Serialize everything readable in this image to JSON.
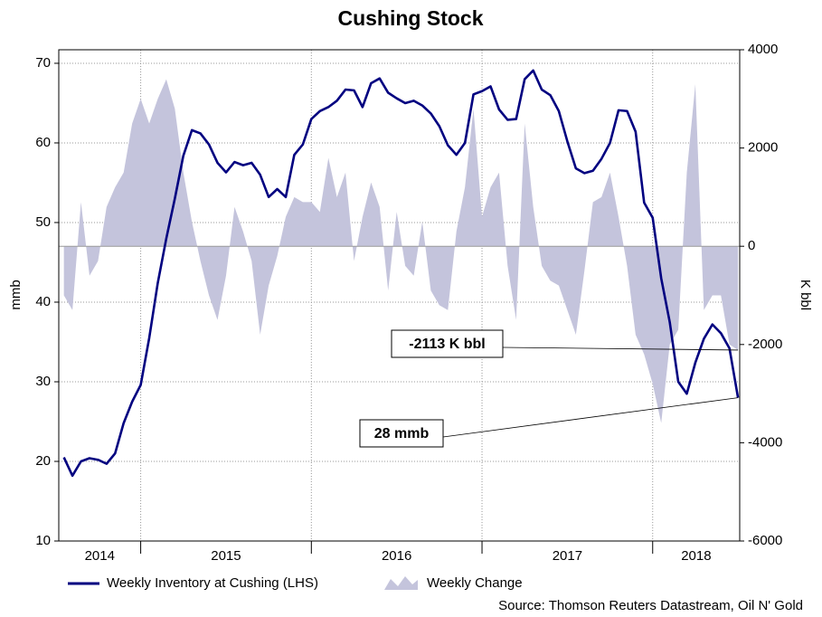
{
  "chart_data": {
    "type": "line",
    "title": "Cushing Stock",
    "y_label": "mmb",
    "y2_label": "K bbl",
    "source": "Source: Thomson Reuters Datastream, Oil N' Gold",
    "x": [
      2014.55,
      2014.6,
      2014.65,
      2014.7,
      2014.75,
      2014.8,
      2014.85,
      2014.9,
      2014.95,
      2015.0,
      2015.05,
      2015.1,
      2015.15,
      2015.2,
      2015.25,
      2015.3,
      2015.35,
      2015.4,
      2015.45,
      2015.5,
      2015.55,
      2015.6,
      2015.65,
      2015.7,
      2015.75,
      2015.8,
      2015.85,
      2015.9,
      2015.95,
      2016.0,
      2016.05,
      2016.1,
      2016.15,
      2016.2,
      2016.25,
      2016.3,
      2016.35,
      2016.4,
      2016.45,
      2016.5,
      2016.55,
      2016.6,
      2016.65,
      2016.7,
      2016.75,
      2016.8,
      2016.85,
      2016.9,
      2016.95,
      2017.0,
      2017.05,
      2017.1,
      2017.15,
      2017.2,
      2017.25,
      2017.3,
      2017.35,
      2017.4,
      2017.45,
      2017.5,
      2017.55,
      2017.6,
      2017.65,
      2017.7,
      2017.75,
      2017.8,
      2017.85,
      2017.9,
      2017.95,
      2018.0,
      2018.05,
      2018.1,
      2018.15,
      2018.2,
      2018.25,
      2018.3,
      2018.35,
      2018.4,
      2018.45,
      2018.5
    ],
    "xlim": [
      2014.52,
      2018.51
    ],
    "xticks": [
      2015,
      2016,
      2017,
      2018
    ],
    "xlabels": [
      "2014",
      "2015",
      "2016",
      "2017",
      "2018"
    ],
    "ylim": [
      10,
      71.7
    ],
    "yticks": [
      10,
      20,
      30,
      40,
      50,
      60,
      70
    ],
    "y2lim": [
      -6000,
      4000
    ],
    "y2ticks": [
      -6000,
      -4000,
      -2000,
      0,
      2000,
      4000
    ],
    "grid": true,
    "series": [
      {
        "name": "Weekly Inventory at Cushing (LHS)",
        "type": "line",
        "color": "#000080",
        "values": [
          20.5,
          18.2,
          20,
          20.4,
          20.2,
          19.7,
          21,
          24.8,
          27.5,
          29.6,
          35.5,
          42.4,
          48,
          53,
          58.4,
          61.6,
          61.2,
          59.8,
          57.5,
          56.3,
          57.6,
          57.2,
          57.5,
          56,
          53.2,
          54.2,
          53.2,
          58.5,
          59.8,
          63,
          64,
          64.5,
          65.3,
          66.7,
          66.6,
          64.5,
          67.5,
          68.1,
          66.3,
          65.6,
          65,
          65.3,
          64.7,
          63.7,
          62.1,
          59.7,
          58.5,
          60,
          66.1,
          66.5,
          67.1,
          64.2,
          62.9,
          63,
          68,
          69.1,
          66.7,
          66,
          64,
          60.2,
          56.8,
          56.2,
          56.5,
          58,
          60,
          64.1,
          64,
          61.4,
          52.5,
          50.6,
          43,
          37.5,
          30,
          28.5,
          32.4,
          35.4,
          37.2,
          36.1,
          34.2,
          28
        ]
      },
      {
        "name": "Weekly Change",
        "type": "area",
        "axis": "y2",
        "color": "#c4c4dc",
        "values": [
          -1000,
          -1300,
          900,
          -600,
          -300,
          800,
          1200,
          1500,
          2500,
          3000,
          2500,
          3000,
          3400,
          2800,
          1500,
          500,
          -300,
          -1000,
          -1500,
          -600,
          800,
          300,
          -300,
          -1800,
          -800,
          -200,
          600,
          1000,
          900,
          900,
          700,
          1800,
          1000,
          1500,
          -300,
          600,
          1300,
          800,
          -900,
          700,
          -400,
          -600,
          500,
          -900,
          -1200,
          -1300,
          300,
          1200,
          2800,
          600,
          1200,
          1500,
          -400,
          -1500,
          2500,
          800,
          -400,
          -700,
          -800,
          -1300,
          -1800,
          -500,
          900,
          1000,
          1500,
          600,
          -400,
          -1800,
          -2200,
          -2800,
          -3600,
          -2000,
          -1700,
          1500,
          3300,
          -1300,
          -1000,
          -1000,
          -2000,
          -2113
        ]
      }
    ],
    "annotations": [
      {
        "text": "-2113 K bbl",
        "series": 1
      },
      {
        "text": "28 mmb",
        "series": 0
      }
    ]
  }
}
